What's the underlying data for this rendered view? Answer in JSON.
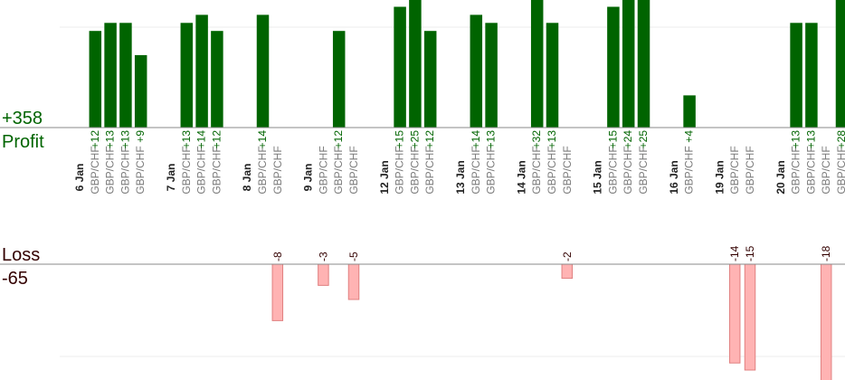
{
  "chart_data": {
    "type": "bar",
    "profit_total": "+358",
    "profit_label": "Profit",
    "loss_label": "Loss",
    "loss_total": "-65",
    "pair": "GBP/CHF",
    "colors": {
      "profit": "#006400",
      "loss": "#ffb3b3",
      "loss_stroke": "#e08080",
      "profit_text": "#006400",
      "loss_text": "#330000",
      "axis": "#888888",
      "grid": "#eeeeee"
    },
    "days": [
      {
        "date": "6 Jan",
        "trades": [
          12,
          13,
          13,
          9
        ]
      },
      {
        "date": "7 Jan",
        "trades": [
          13,
          14,
          12
        ]
      },
      {
        "date": "8 Jan",
        "trades": [
          14,
          -8
        ]
      },
      {
        "date": "9 Jan",
        "trades": [
          -3,
          12,
          -5
        ]
      },
      {
        "date": "12 Jan",
        "trades": [
          15,
          25,
          12
        ]
      },
      {
        "date": "13 Jan",
        "trades": [
          14,
          13
        ]
      },
      {
        "date": "14 Jan",
        "trades": [
          32,
          13,
          -2
        ]
      },
      {
        "date": "15 Jan",
        "trades": [
          15,
          24,
          25
        ]
      },
      {
        "date": "16 Jan",
        "trades": [
          4
        ]
      },
      {
        "date": "19 Jan",
        "trades": [
          -14,
          -15
        ]
      },
      {
        "date": "20 Jan",
        "trades": [
          13,
          13,
          -18,
          28
        ]
      }
    ]
  }
}
